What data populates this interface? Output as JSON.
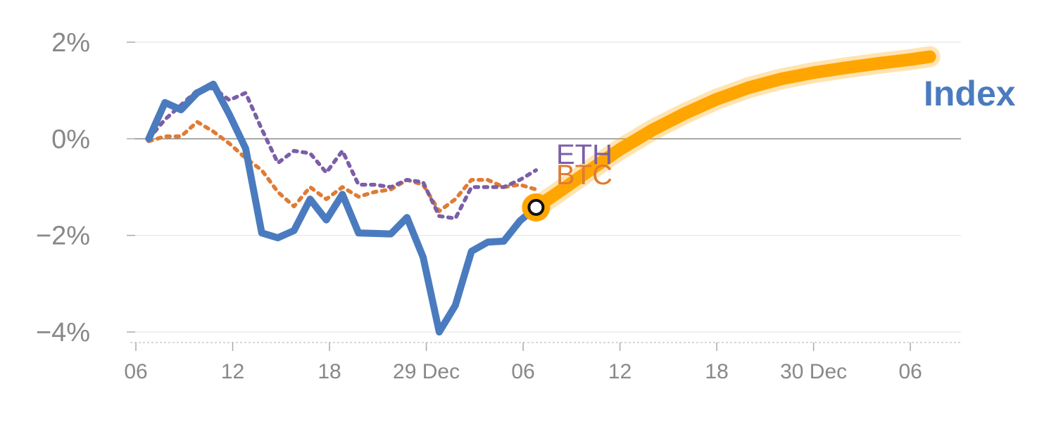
{
  "chart_data": {
    "type": "line",
    "title": "",
    "xlabel": "",
    "ylabel": "",
    "ylim": [
      -4,
      2
    ],
    "y_ticks": [
      {
        "value": 2,
        "label": "2%"
      },
      {
        "value": 0,
        "label": "0%"
      },
      {
        "value": -2,
        "label": "−2%"
      },
      {
        "value": -4,
        "label": "−4%"
      }
    ],
    "x_ticks": [
      {
        "pos": 0,
        "label": "06"
      },
      {
        "pos": 6,
        "label": "12"
      },
      {
        "pos": 12,
        "label": "18"
      },
      {
        "pos": 18,
        "label": "29 Dec"
      },
      {
        "pos": 24,
        "label": "06"
      },
      {
        "pos": 30,
        "label": "12"
      },
      {
        "pos": 36,
        "label": "18"
      },
      {
        "pos": 42,
        "label": "30 Dec"
      },
      {
        "pos": 48,
        "label": "06"
      }
    ],
    "x_range": [
      0,
      51
    ],
    "series": [
      {
        "name": "Index",
        "label": "Index",
        "color": "#4b7bbf",
        "style": "solid",
        "x": [
          0.8,
          1.8,
          2.8,
          3.8,
          4.8,
          5.8,
          6.8,
          7.8,
          8.8,
          9.8,
          10.8,
          11.8,
          12.8,
          13.8,
          14.8,
          15.8,
          16.8,
          17.8,
          18.8,
          19.8,
          20.8,
          21.8,
          22.8,
          23.8,
          24.8
        ],
        "values": [
          0.0,
          0.75,
          0.6,
          0.95,
          1.13,
          0.5,
          -0.2,
          -1.95,
          -2.05,
          -1.9,
          -1.25,
          -1.68,
          -1.15,
          -1.95,
          -1.96,
          -1.97,
          -1.63,
          -2.45,
          -4.0,
          -3.45,
          -2.33,
          -2.14,
          -2.12,
          -1.7,
          -1.42
        ]
      },
      {
        "name": "ETH",
        "label": "ETH",
        "color": "#7b5ea7",
        "style": "dotted",
        "x": [
          0.8,
          1.8,
          2.8,
          3.8,
          4.8,
          5.8,
          6.8,
          7.8,
          8.8,
          9.8,
          10.8,
          11.8,
          12.8,
          13.8,
          14.8,
          15.8,
          16.8,
          17.8,
          18.8,
          19.8,
          20.8,
          21.8,
          22.8,
          23.8,
          24.8
        ],
        "values": [
          0.0,
          0.4,
          0.7,
          1.0,
          1.05,
          0.8,
          0.95,
          0.2,
          -0.5,
          -0.25,
          -0.3,
          -0.7,
          -0.25,
          -0.95,
          -0.95,
          -1.0,
          -0.85,
          -0.9,
          -1.6,
          -1.65,
          -1.0,
          -1.0,
          -1.0,
          -0.85,
          -0.65
        ]
      },
      {
        "name": "BTC",
        "label": "BTC",
        "color": "#e07b33",
        "style": "dotted",
        "x": [
          0.8,
          1.8,
          2.8,
          3.8,
          4.8,
          5.8,
          6.8,
          7.8,
          8.8,
          9.8,
          10.8,
          11.8,
          12.8,
          13.8,
          14.8,
          15.8,
          16.8,
          17.8,
          18.8,
          19.8,
          20.8,
          21.8,
          22.8,
          23.8,
          24.8
        ],
        "values": [
          -0.05,
          0.05,
          0.05,
          0.35,
          0.15,
          -0.1,
          -0.4,
          -0.65,
          -1.1,
          -1.4,
          -1.0,
          -1.25,
          -1.0,
          -1.2,
          -1.1,
          -1.05,
          -0.85,
          -0.95,
          -1.5,
          -1.25,
          -0.85,
          -0.85,
          -1.0,
          -0.95,
          -1.05
        ]
      },
      {
        "name": "Index projection",
        "label": "",
        "color": "#ffa500",
        "style": "thick",
        "x": [
          24.8,
          26,
          28,
          30,
          32,
          34,
          36,
          38,
          40,
          42,
          44,
          46,
          48,
          49.2
        ],
        "values": [
          -1.42,
          -1.15,
          -0.68,
          -0.22,
          0.18,
          0.52,
          0.82,
          1.06,
          1.24,
          1.37,
          1.47,
          1.56,
          1.64,
          1.7
        ]
      }
    ],
    "annotations": [
      {
        "series": "Index",
        "x": 24.8,
        "y": -1.42,
        "type": "marker"
      }
    ]
  }
}
